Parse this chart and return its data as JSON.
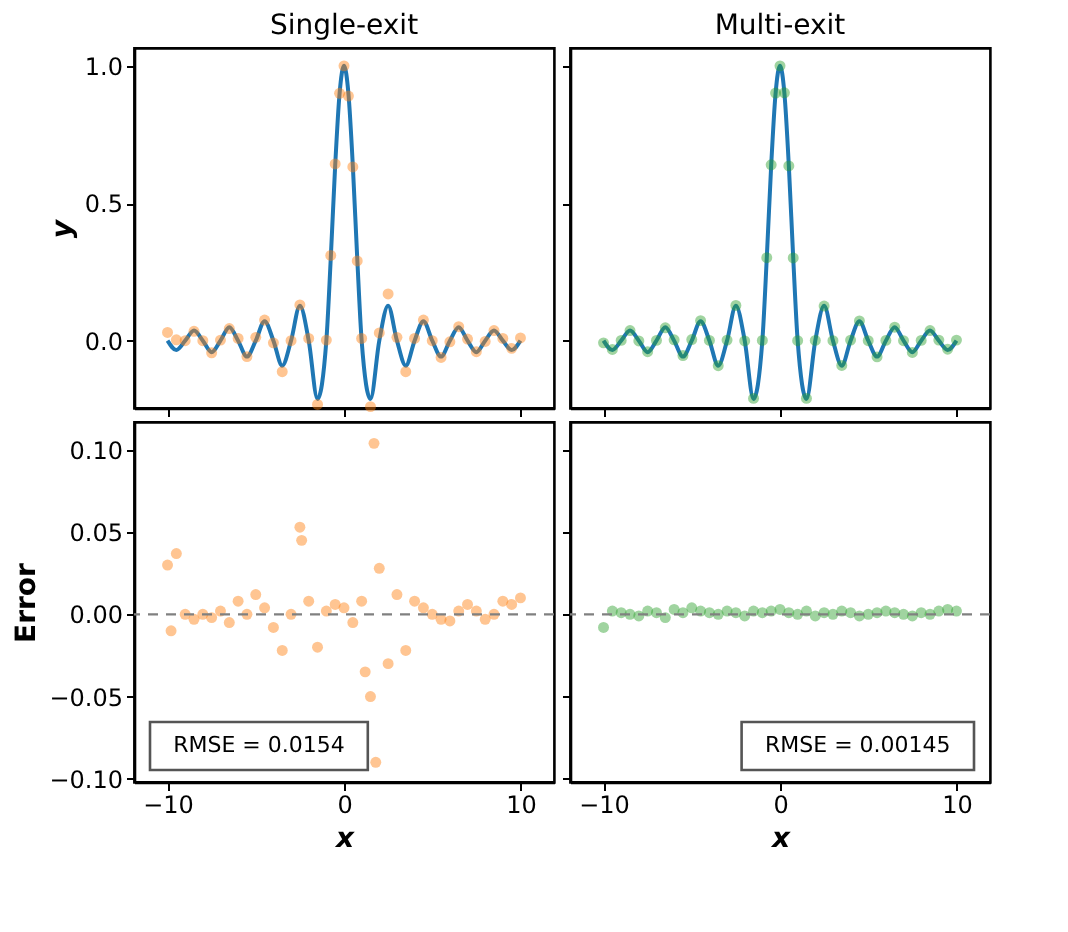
{
  "chart_data": [
    {
      "type": "line",
      "title": "Single-exit",
      "ylabel": "y",
      "xlim": [
        -11.9,
        11.9
      ],
      "xticks": [
        -10,
        0,
        10
      ],
      "ylim": [
        -0.245,
        1.065
      ],
      "yticks": [
        {
          "value": 0,
          "label": "0.0"
        },
        {
          "value": 0.5,
          "label": "0.5"
        },
        {
          "value": 1,
          "label": "1.0"
        }
      ],
      "tick_labels": "y",
      "series": [
        {
          "color": "#1f77b4",
          "x": [
            -10,
            -9.5,
            -9,
            -8.5,
            -8,
            -7.5,
            -7,
            -6.5,
            -6,
            -5.5,
            -5,
            -4.5,
            -4,
            -3.5,
            -3,
            -2.5,
            -2,
            -1.5,
            -1,
            -0.75,
            -0.5,
            -0.25,
            0,
            0.25,
            0.5,
            0.75,
            1,
            1.5,
            2,
            2.5,
            3,
            3.5,
            4,
            4.5,
            5,
            5.5,
            6,
            6.5,
            7,
            7.5,
            8,
            8.5,
            9,
            9.5,
            10
          ],
          "values": [
            0,
            -0.034,
            0,
            0.037,
            0,
            -0.042,
            0,
            0.049,
            0,
            -0.058,
            0,
            0.071,
            0,
            -0.091,
            0,
            0.127,
            0,
            -0.212,
            0,
            0.3,
            0.637,
            0.9,
            1,
            0.9,
            0.637,
            0.3,
            0,
            -0.212,
            0,
            0.127,
            0,
            -0.091,
            0,
            0.071,
            0,
            -0.058,
            0,
            0.049,
            0,
            -0.042,
            0,
            0.037,
            0,
            -0.034,
            0
          ]
        },
        {
          "type": "scatter",
          "marker": "circle",
          "color": "#ff7f0e",
          "x": [
            -10,
            -9.5,
            -9,
            -8.5,
            -8,
            -7.5,
            -7,
            -6.5,
            -6,
            -5.5,
            -5,
            -4.5,
            -4,
            -3.5,
            -3,
            -2.5,
            -2,
            -1.5,
            -1,
            -0.75,
            -0.5,
            -0.25,
            0,
            0.25,
            0.5,
            0.75,
            1,
            1.5,
            2,
            2.5,
            3,
            3.5,
            4,
            4.5,
            5,
            5.5,
            6,
            6.5,
            7,
            7.5,
            8,
            8.5,
            9,
            9.5,
            10
          ],
          "values": [
            0.03,
            0.003,
            0,
            0.034,
            0,
            -0.044,
            0.002,
            0.044,
            0.008,
            -0.058,
            0.012,
            0.075,
            -0.008,
            -0.113,
            0,
            0.13,
            0.008,
            -0.232,
            0.002,
            0.31,
            0.643,
            0.9,
            1.0,
            0.89,
            0.632,
            0.29,
            0.008,
            -0.24,
            0.028,
            0.17,
            0.012,
            -0.113,
            0.008,
            0.075,
            0,
            -0.061,
            -0.004,
            0.051,
            0.006,
            -0.04,
            -0.003,
            0.037,
            0.008,
            -0.028,
            0.01
          ]
        }
      ]
    },
    {
      "type": "line",
      "title": "Multi-exit",
      "xlim": [
        -11.9,
        11.9
      ],
      "xticks": [
        -10,
        0,
        10
      ],
      "ylim": [
        -0.245,
        1.065
      ],
      "yticks": [
        0,
        0.5,
        1
      ],
      "tick_labels": false,
      "series": [
        {
          "color": "#1f77b4",
          "x": [
            -10,
            -9.5,
            -9,
            -8.5,
            -8,
            -7.5,
            -7,
            -6.5,
            -6,
            -5.5,
            -5,
            -4.5,
            -4,
            -3.5,
            -3,
            -2.5,
            -2,
            -1.5,
            -1,
            -0.75,
            -0.5,
            -0.25,
            0,
            0.25,
            0.5,
            0.75,
            1,
            1.5,
            2,
            2.5,
            3,
            3.5,
            4,
            4.5,
            5,
            5.5,
            6,
            6.5,
            7,
            7.5,
            8,
            8.5,
            9,
            9.5,
            10
          ],
          "values": [
            0,
            -0.034,
            0,
            0.037,
            0,
            -0.042,
            0,
            0.049,
            0,
            -0.058,
            0,
            0.071,
            0,
            -0.091,
            0,
            0.127,
            0,
            -0.212,
            0,
            0.3,
            0.637,
            0.9,
            1,
            0.9,
            0.637,
            0.3,
            0,
            -0.212,
            0,
            0.127,
            0,
            -0.091,
            0,
            0.071,
            0,
            -0.058,
            0,
            0.049,
            0,
            -0.042,
            0,
            0.037,
            0,
            -0.034,
            0
          ]
        },
        {
          "type": "scatter",
          "marker": "circle",
          "color": "#2ca02c",
          "x": [
            -10,
            -9.5,
            -9,
            -8.5,
            -8,
            -7.5,
            -7,
            -6.5,
            -6,
            -5.5,
            -5,
            -4.5,
            -4,
            -3.5,
            -3,
            -2.5,
            -2,
            -1.5,
            -1,
            -0.75,
            -0.5,
            -0.25,
            0,
            0.25,
            0.5,
            0.75,
            1,
            1.5,
            2,
            2.5,
            3,
            3.5,
            4,
            4.5,
            5,
            5.5,
            6,
            6.5,
            7,
            7.5,
            8,
            8.5,
            9,
            9.5,
            10
          ],
          "values": [
            -0.008,
            -0.032,
            0.001,
            0.037,
            -0.001,
            -0.04,
            0.001,
            0.047,
            0.003,
            -0.054,
            0.004,
            0.073,
            0.001,
            -0.091,
            0.002,
            0.128,
            -0.001,
            -0.21,
            0.001,
            0.302,
            0.64,
            0.901,
            1.0,
            0.902,
            0.636,
            0.301,
            0,
            -0.21,
            0.001,
            0.126,
            0,
            -0.09,
            0.002,
            0.072,
            0,
            -0.059,
            0.001,
            0.049,
            0,
            -0.043,
            0.001,
            0.037,
            0.002,
            -0.031,
            0.002
          ]
        }
      ]
    },
    {
      "type": "scatter",
      "xlabel": "x",
      "ylabel": "Error",
      "xlim": [
        -11.9,
        11.9
      ],
      "xticks": [
        -10,
        0,
        10
      ],
      "ylim": [
        -0.102,
        0.117
      ],
      "yticks": [
        {
          "value": -0.1,
          "label": "−0.10"
        },
        {
          "value": -0.05,
          "label": "−0.05"
        },
        {
          "value": 0,
          "label": "0.00"
        },
        {
          "value": 0.05,
          "label": "0.05"
        },
        {
          "value": 0.1,
          "label": "0.10"
        }
      ],
      "ref_lines": [
        {
          "axis": "y",
          "value": 0,
          "color": "#808080",
          "line_style": "dashed"
        }
      ],
      "annotations": [
        "RMSE = 0.0154"
      ],
      "series": [
        {
          "marker": "circle",
          "color": "#ff7f0e",
          "x": [
            -10,
            -9.8,
            -9.5,
            -9,
            -8.5,
            -8,
            -7.5,
            -7,
            -6.5,
            -6,
            -5.5,
            -5,
            -4.5,
            -4,
            -3.5,
            -3,
            -2.5,
            -2.4,
            -2,
            -1.5,
            -1,
            -0.5,
            0,
            0.5,
            1,
            1.2,
            1.5,
            1.7,
            1.8,
            2,
            2.5,
            3,
            3.5,
            4,
            4.5,
            5,
            5.5,
            6,
            6.5,
            7,
            7.5,
            8,
            8.5,
            9,
            9.5,
            10
          ],
          "values": [
            0.03,
            -0.01,
            0.037,
            0.0,
            -0.003,
            0.0,
            -0.002,
            0.002,
            -0.005,
            0.008,
            0.0,
            0.012,
            0.004,
            -0.008,
            -0.022,
            0.0,
            0.053,
            0.045,
            0.008,
            -0.02,
            0.002,
            0.006,
            0.004,
            -0.005,
            0.008,
            -0.035,
            -0.05,
            0.104,
            -0.09,
            0.028,
            -0.03,
            0.012,
            -0.022,
            0.008,
            0.004,
            0.0,
            -0.003,
            -0.004,
            0.002,
            0.006,
            0.002,
            -0.003,
            0.0,
            0.008,
            0.006,
            0.01
          ]
        }
      ]
    },
    {
      "type": "scatter",
      "xlabel": "x",
      "xlim": [
        -11.9,
        11.9
      ],
      "xticks": [
        -10,
        0,
        10
      ],
      "ylim": [
        -0.102,
        0.117
      ],
      "yticks": [
        -0.1,
        -0.05,
        0,
        0.05,
        0.1
      ],
      "tick_labels": "x",
      "ref_lines": [
        {
          "axis": "y",
          "value": 0,
          "color": "#808080",
          "line_style": "dashed"
        }
      ],
      "annotations": [
        "RMSE = 0.00145"
      ],
      "series": [
        {
          "marker": "circle",
          "color": "#2ca02c",
          "x": [
            -10,
            -9.5,
            -9,
            -8.5,
            -8,
            -7.5,
            -7,
            -6.5,
            -6,
            -5.5,
            -5,
            -4.5,
            -4,
            -3.5,
            -3,
            -2.5,
            -2,
            -1.5,
            -1,
            -0.5,
            0,
            0.5,
            1,
            1.5,
            2,
            2.5,
            3,
            3.5,
            4,
            4.5,
            5,
            5.5,
            6,
            6.5,
            7,
            7.5,
            8,
            8.5,
            9,
            9.5,
            10
          ],
          "values": [
            -0.008,
            0.002,
            0.001,
            0.0,
            -0.001,
            0.002,
            0.001,
            -0.002,
            0.003,
            0.001,
            0.004,
            0.002,
            0.001,
            0.0,
            0.002,
            0.001,
            -0.001,
            0.002,
            0.001,
            0.002,
            0.003,
            0.001,
            0.0,
            0.002,
            -0.001,
            0.001,
            0.0,
            0.002,
            0.001,
            -0.001,
            0.0,
            0.001,
            0.002,
            0.001,
            0.0,
            -0.001,
            0.001,
            0.0,
            0.002,
            0.003,
            0.002
          ]
        }
      ]
    }
  ]
}
